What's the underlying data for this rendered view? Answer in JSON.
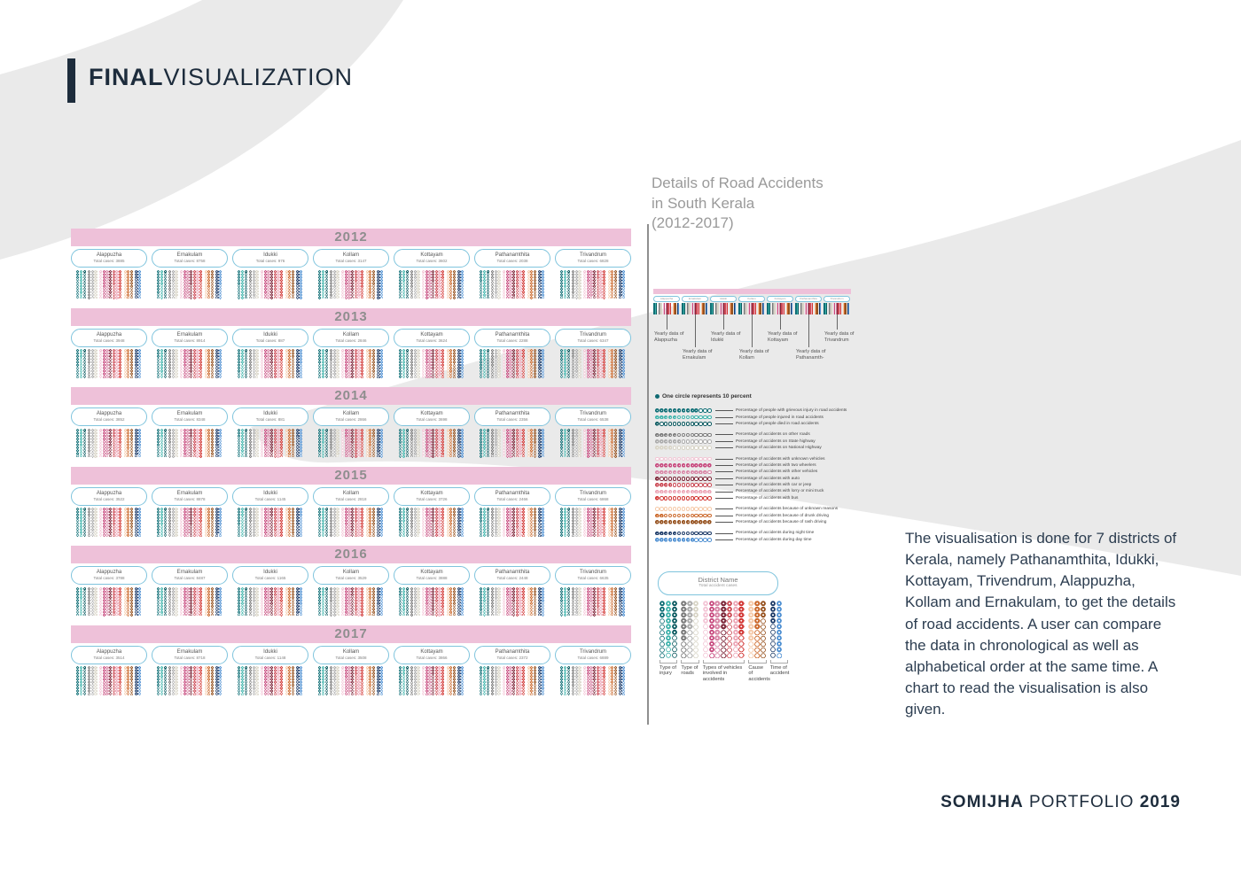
{
  "title": {
    "bold": "FINAL",
    "light": "VISUALIZATION"
  },
  "heading": {
    "line1": "Details of Road Accidents",
    "line2": "in South Kerala",
    "line3": "(2012-2017)"
  },
  "paragraph": "The visualisation is done for 7 districts of Kerala, namely Pathanamthita, Idukki, Kottayam, Trivendrum, Alappuzha, Kollam and Ernakulam, to get the details of road accidents. A user can compare the data in chronological as well as alphabetical order at the same time. A chart to read the visualisation is also given.",
  "footer": {
    "name": "SOMIJHA",
    "middle": " PORTFOLIO ",
    "year": "2019"
  },
  "colors": {
    "band_pink": "#eec1d9",
    "card_border": "#7fc4dd",
    "title_navy": "#1d2c3c"
  },
  "chart_data": {
    "type": "pictogram-grid",
    "legend_title": "One circle represents 10 percent",
    "years": [
      "2012",
      "2013",
      "2014",
      "2015",
      "2016",
      "2017"
    ],
    "districts": [
      "Alappuzha",
      "Ernakulam",
      "Idukki",
      "Kollam",
      "Kottayam",
      "Pathanamthita",
      "Trivandrum"
    ],
    "total_label": "Total cases:",
    "total_cases": {
      "2012": [
        3885,
        8758,
        976,
        3147,
        3602,
        2038,
        6828
      ],
      "2013": [
        3948,
        8914,
        887,
        2846,
        3624,
        2288,
        6347
      ],
      "2014": [
        3852,
        8348,
        881,
        2866,
        3698,
        2356,
        6538
      ],
      "2015": [
        3522,
        8878,
        1145,
        2818,
        3726,
        2466,
        6868
      ],
      "2016": [
        3788,
        8487,
        1165,
        3529,
        3888,
        2448,
        6635
      ],
      "2017": [
        3514,
        8718,
        1148,
        3508,
        3866,
        2372,
        6889
      ]
    },
    "group_labels": [
      "Type of injury",
      "Type of roads",
      "Types of vehicles involved in accidents",
      "Cause of accidents",
      "Time of accident"
    ],
    "categories": [
      {
        "label": "Percentage of people with grievous injury in road accidents",
        "color": "#0f6f76",
        "group": 0,
        "outline": false,
        "legend_fill": 10
      },
      {
        "label": "Percentage of people injured in road accidents",
        "color": "#3db3ab",
        "group": 0,
        "outline": false,
        "legend_fill": 5
      },
      {
        "label": "Percentage of people died in road accidents",
        "color": "#0b5a60",
        "group": 0,
        "outline": true,
        "legend_fill": 1
      },
      {
        "label": "Percentage of accidents on other roads",
        "color": "#7b7b7b",
        "group": 1,
        "outline": false,
        "legend_fill": 5
      },
      {
        "label": "Percentage of accidents on State highway",
        "color": "#ababab",
        "group": 1,
        "outline": false,
        "legend_fill": 6
      },
      {
        "label": "Percentage of accidents on National Highway",
        "color": "#d8d4c6",
        "group": 1,
        "outline": false,
        "legend_fill": 4
      },
      {
        "label": "Percentage of accidents with unknown vehicles",
        "color": "#f3c6d6",
        "group": 2,
        "outline": true,
        "legend_fill": 0
      },
      {
        "label": "Percentage of accidents with two wheelers",
        "color": "#c74a7e",
        "group": 2,
        "outline": false,
        "legend_fill": 13
      },
      {
        "label": "Percentage of accidents with other vehicles",
        "color": "#d886a6",
        "group": 2,
        "outline": false,
        "legend_fill": 12
      },
      {
        "label": "Percentage of accidents with auto",
        "color": "#7c2638",
        "group": 2,
        "outline": false,
        "legend_fill": 1
      },
      {
        "label": "Percentage of accidents with car or jeep",
        "color": "#cc4a55",
        "group": 2,
        "outline": false,
        "legend_fill": 4
      },
      {
        "label": "Percentage of accidents with lorry or mini truck",
        "color": "#eca6b6",
        "group": 2,
        "outline": false,
        "legend_fill": 13
      },
      {
        "label": "Percentage of accidents with bus",
        "color": "#d23734",
        "group": 2,
        "outline": false,
        "legend_fill": 1
      },
      {
        "label": "Percentage of accidents because of unknown reasons",
        "color": "#f6caa9",
        "group": 3,
        "outline": true,
        "legend_fill": 0
      },
      {
        "label": "Percentage of accidents because of drunk driving",
        "color": "#cb692c",
        "group": 3,
        "outline": false,
        "legend_fill": 2
      },
      {
        "label": "Percentage of accidents because of rash driving",
        "color": "#96521f",
        "group": 3,
        "outline": false,
        "legend_fill": 13
      },
      {
        "label": "Percentage of accidents during night time",
        "color": "#1e3c69",
        "group": 4,
        "outline": false,
        "legend_fill": 5
      },
      {
        "label": "Percentage of accidents during day time",
        "color": "#4f90d2",
        "group": 4,
        "outline": false,
        "legend_fill": 9
      }
    ],
    "howto": {
      "card_title": "District Name",
      "card_subtitle": "Total accident cases"
    },
    "mini": {
      "callout_prefix": "Yearly data of",
      "callout_names": [
        "Alappuzha",
        "Ernakulam",
        "Idukki",
        "Kollam",
        "Kottayam",
        "Pathanamth-",
        "Trivandrum"
      ]
    }
  }
}
